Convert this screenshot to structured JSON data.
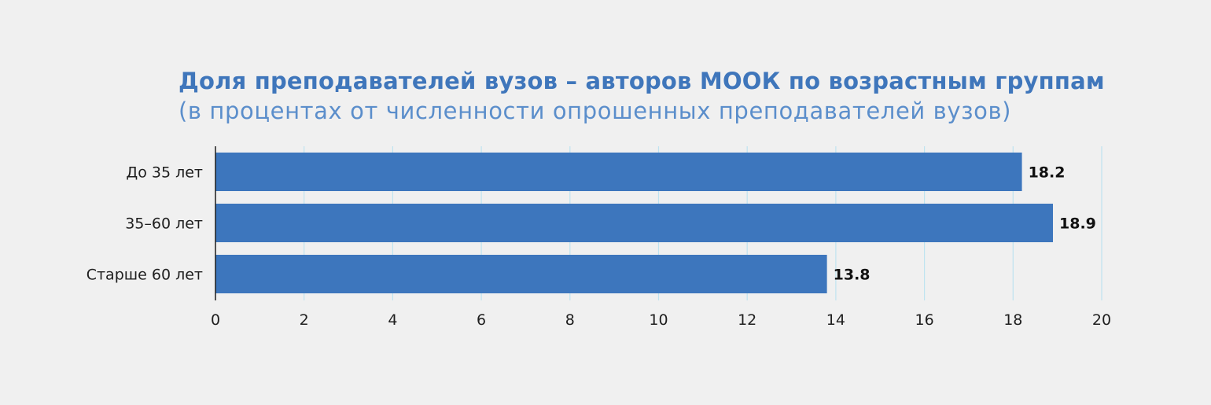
{
  "chart_data": {
    "type": "bar",
    "orientation": "horizontal",
    "title": "Доля преподавателей вузов – авторов МООК по возрастным группам",
    "subtitle": "(в процентах от численности опрошенных преподавателей вузов)",
    "categories": [
      "До 35 лет",
      "35–60 лет",
      "Старше 60 лет"
    ],
    "values": [
      18.2,
      18.9,
      13.8
    ],
    "value_labels": [
      "18.2",
      "18.9",
      "13.8"
    ],
    "xlim": [
      0,
      20
    ],
    "xticks": [
      0,
      2,
      4,
      6,
      8,
      10,
      12,
      14,
      16,
      18,
      20
    ],
    "xtick_labels": [
      "0",
      "2",
      "4",
      "6",
      "8",
      "10",
      "12",
      "14",
      "16",
      "18",
      "20"
    ],
    "grid": "vertical",
    "legend": "none",
    "colors": {
      "bar": "#3d76bd",
      "grid": "#bfe3f0",
      "title": "#3f76bb",
      "subtitle": "#5b8ecb",
      "axis": "#1e1e1e"
    }
  }
}
